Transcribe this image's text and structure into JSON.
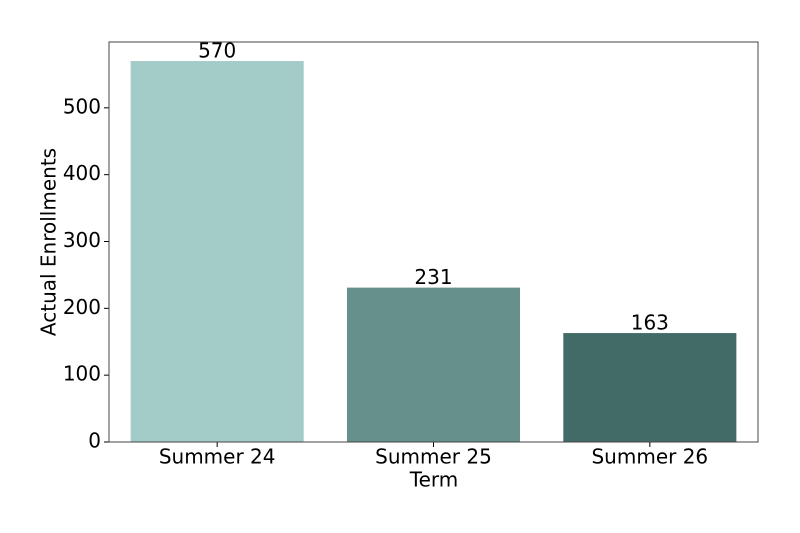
{
  "chart_data": {
    "type": "bar",
    "x_label": "Term",
    "y_label": "Actual Enrollments",
    "categories": [
      "Summer 24",
      "Summer 25",
      "Summer 26"
    ],
    "values": [
      570,
      231,
      163
    ],
    "colors": [
      "#a3cbc8",
      "#66908c",
      "#426b67"
    ],
    "ylim": [
      0,
      598.5
    ],
    "yticks": [
      0,
      100,
      200,
      300,
      400,
      500
    ],
    "grid": false
  }
}
